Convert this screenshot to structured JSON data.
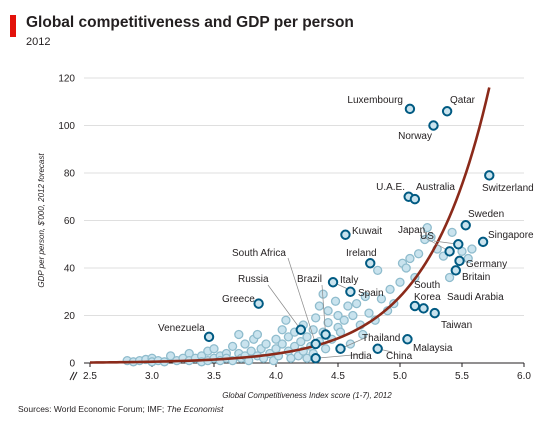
{
  "header": {
    "title": "Global competitiveness and GDP per person",
    "subtitle": "2012"
  },
  "footer": {
    "source_prefix": "Sources: World Economic Forum; IMF; ",
    "source_italic": "The Economist"
  },
  "colors": {
    "accent_red": "#e3120b",
    "curve": "#8b2a1a",
    "highlight_point": "#005a82",
    "point_fill": "#c9e3ee",
    "other_point": "#8fbccd",
    "grid": "#d5d5d5"
  },
  "chart_data": {
    "type": "scatter",
    "title": "Global competitiveness and GDP per person",
    "subtitle": "2012",
    "xlabel": "Global Competitiveness Index score (1-7), 2012",
    "ylabel": "GDP per person, $'000, 2012 forecast",
    "xlim": [
      2.5,
      6.0
    ],
    "ylim": [
      0,
      120
    ],
    "x_ticks": [
      "2.5",
      "3.0",
      "3.5",
      "4.0",
      "4.5",
      "5.0",
      "5.5",
      "6.0"
    ],
    "y_ticks": [
      "0",
      "20",
      "40",
      "60",
      "80",
      "100",
      "120"
    ],
    "grid": "horizontal",
    "trendline": "exponential",
    "labeled_points": [
      {
        "label": "Luxembourg",
        "x": 5.08,
        "y": 107
      },
      {
        "label": "Qatar",
        "x": 5.38,
        "y": 106
      },
      {
        "label": "Norway",
        "x": 5.27,
        "y": 100
      },
      {
        "label": "Switzerland",
        "x": 5.72,
        "y": 79
      },
      {
        "label": "U.A.E.",
        "x": 5.07,
        "y": 70
      },
      {
        "label": "Australia",
        "x": 5.12,
        "y": 69
      },
      {
        "label": "Sweden",
        "x": 5.53,
        "y": 58
      },
      {
        "label": "Singapore",
        "x": 5.67,
        "y": 51
      },
      {
        "label": "Kuwait",
        "x": 4.56,
        "y": 54
      },
      {
        "label": "Japan",
        "x": 5.4,
        "y": 47
      },
      {
        "label": "US",
        "x": 5.47,
        "y": 50
      },
      {
        "label": "Germany",
        "x": 5.48,
        "y": 43
      },
      {
        "label": "Britain",
        "x": 5.45,
        "y": 39
      },
      {
        "label": "Ireland",
        "x": 4.76,
        "y": 42
      },
      {
        "label": "South Africa",
        "x": 4.32,
        "y": 8
      },
      {
        "label": "Russia",
        "x": 4.2,
        "y": 14
      },
      {
        "label": "Brazil",
        "x": 4.4,
        "y": 12
      },
      {
        "label": "Italy",
        "x": 4.46,
        "y": 34
      },
      {
        "label": "Spain",
        "x": 4.6,
        "y": 30
      },
      {
        "label": "South Korea",
        "x": 5.12,
        "y": 24
      },
      {
        "label": "Saudi Arabia",
        "x": 5.19,
        "y": 23
      },
      {
        "label": "Taiwan",
        "x": 5.28,
        "y": 21
      },
      {
        "label": "Greece",
        "x": 3.86,
        "y": 25
      },
      {
        "label": "Venezuela",
        "x": 3.46,
        "y": 11
      },
      {
        "label": "Thailand",
        "x": 4.52,
        "y": 6
      },
      {
        "label": "Malaysia",
        "x": 5.06,
        "y": 10
      },
      {
        "label": "India",
        "x": 4.32,
        "y": 2
      },
      {
        "label": "China",
        "x": 4.82,
        "y": 6
      }
    ],
    "other_points": [
      [
        2.8,
        1
      ],
      [
        2.85,
        0.5
      ],
      [
        2.9,
        1
      ],
      [
        2.95,
        1.5
      ],
      [
        3.0,
        2
      ],
      [
        3.0,
        0.5
      ],
      [
        3.05,
        1
      ],
      [
        3.1,
        0.5
      ],
      [
        3.15,
        3
      ],
      [
        3.2,
        1
      ],
      [
        3.25,
        2
      ],
      [
        3.3,
        4
      ],
      [
        3.3,
        1
      ],
      [
        3.35,
        2
      ],
      [
        3.4,
        3
      ],
      [
        3.4,
        0.5
      ],
      [
        3.45,
        5
      ],
      [
        3.45,
        1
      ],
      [
        3.5,
        2
      ],
      [
        3.5,
        6
      ],
      [
        3.55,
        3
      ],
      [
        3.55,
        1
      ],
      [
        3.6,
        4
      ],
      [
        3.6,
        2
      ],
      [
        3.65,
        7
      ],
      [
        3.65,
        1
      ],
      [
        3.7,
        12
      ],
      [
        3.7,
        4
      ],
      [
        3.72,
        2
      ],
      [
        3.75,
        8
      ],
      [
        3.75,
        3
      ],
      [
        3.78,
        1
      ],
      [
        3.8,
        5
      ],
      [
        3.82,
        10
      ],
      [
        3.85,
        3
      ],
      [
        3.85,
        12
      ],
      [
        3.88,
        6
      ],
      [
        3.9,
        2
      ],
      [
        3.92,
        8
      ],
      [
        3.95,
        4
      ],
      [
        3.98,
        1
      ],
      [
        4.0,
        10
      ],
      [
        4.0,
        6
      ],
      [
        4.02,
        3
      ],
      [
        4.05,
        14
      ],
      [
        4.05,
        8
      ],
      [
        4.08,
        18
      ],
      [
        4.1,
        5
      ],
      [
        4.1,
        11
      ],
      [
        4.12,
        2
      ],
      [
        4.15,
        13
      ],
      [
        4.15,
        7
      ],
      [
        4.18,
        3
      ],
      [
        4.2,
        9
      ],
      [
        4.22,
        16
      ],
      [
        4.22,
        5
      ],
      [
        4.25,
        11
      ],
      [
        4.25,
        2
      ],
      [
        4.28,
        7
      ],
      [
        4.3,
        14
      ],
      [
        4.3,
        4
      ],
      [
        4.32,
        19
      ],
      [
        4.35,
        9
      ],
      [
        4.35,
        24
      ],
      [
        4.38,
        13
      ],
      [
        4.38,
        29
      ],
      [
        4.4,
        6
      ],
      [
        4.42,
        22
      ],
      [
        4.42,
        17
      ],
      [
        4.45,
        10
      ],
      [
        4.48,
        26
      ],
      [
        4.5,
        15
      ],
      [
        4.5,
        20
      ],
      [
        4.52,
        13
      ],
      [
        4.55,
        18
      ],
      [
        4.58,
        24
      ],
      [
        4.6,
        8
      ],
      [
        4.62,
        20
      ],
      [
        4.65,
        25
      ],
      [
        4.68,
        16
      ],
      [
        4.7,
        12
      ],
      [
        4.72,
        28
      ],
      [
        4.75,
        21
      ],
      [
        4.8,
        18
      ],
      [
        4.82,
        39
      ],
      [
        4.85,
        27
      ],
      [
        4.9,
        22
      ],
      [
        4.92,
        31
      ],
      [
        4.95,
        25
      ],
      [
        5.0,
        34
      ],
      [
        5.02,
        42
      ],
      [
        5.05,
        40
      ],
      [
        5.08,
        44
      ],
      [
        5.12,
        36
      ],
      [
        5.15,
        46
      ],
      [
        5.2,
        52
      ],
      [
        5.22,
        57
      ],
      [
        5.25,
        53
      ],
      [
        5.3,
        48
      ],
      [
        5.35,
        45
      ],
      [
        5.4,
        36
      ],
      [
        5.42,
        55
      ],
      [
        5.5,
        47
      ],
      [
        5.55,
        44
      ],
      [
        5.58,
        48
      ]
    ]
  }
}
